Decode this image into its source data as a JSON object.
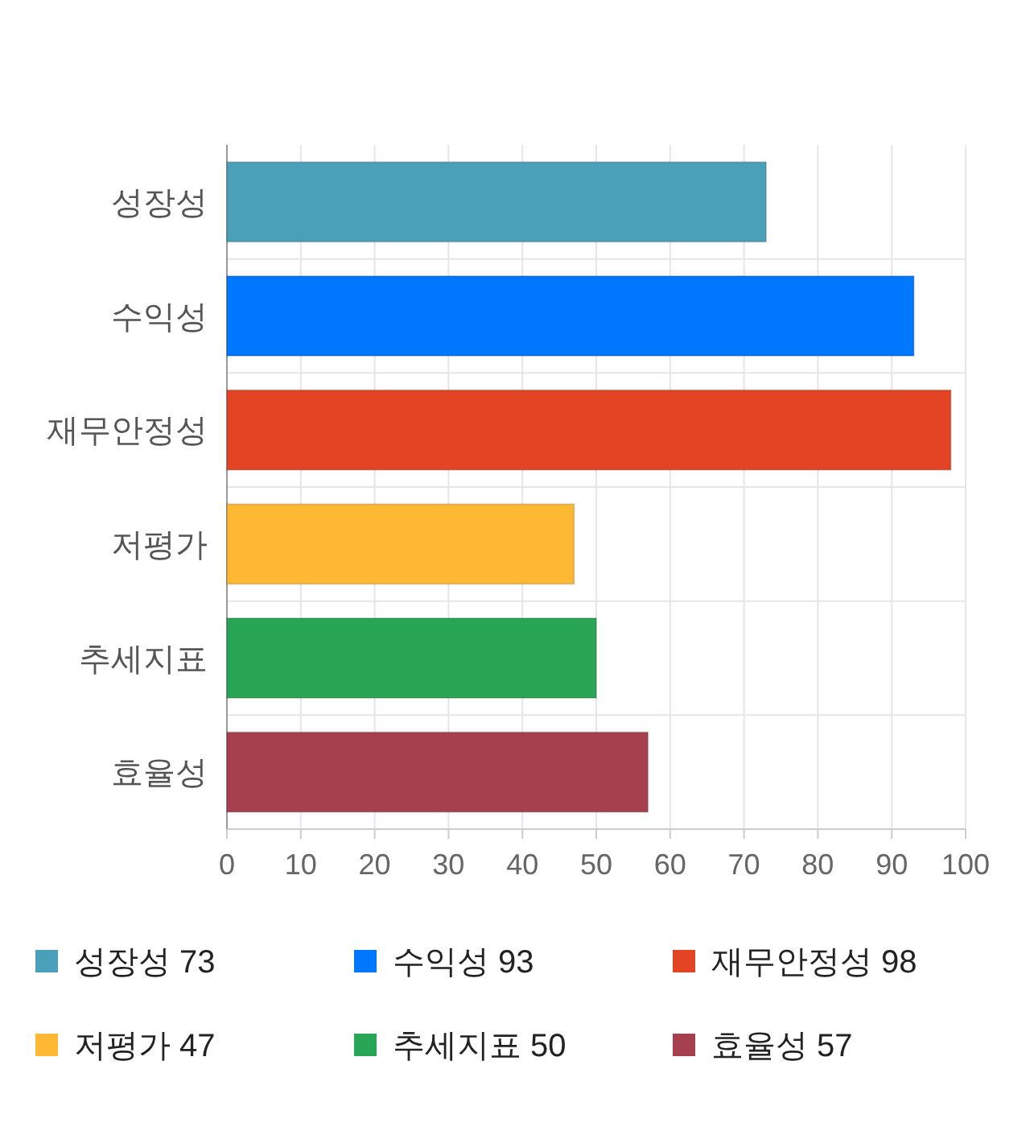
{
  "chart_data": {
    "type": "bar",
    "orientation": "horizontal",
    "categories": [
      "성장성",
      "수익성",
      "재무안정성",
      "저평가",
      "추세지표",
      "효율성"
    ],
    "series": [
      {
        "name": "성장성 73",
        "color": "#4aa0b8",
        "values": [
          73,
          null,
          null,
          null,
          null,
          null
        ]
      },
      {
        "name": "수익성 93",
        "color": "#0077ff",
        "values": [
          null,
          93,
          null,
          null,
          null,
          null
        ]
      },
      {
        "name": "재무안정성 98",
        "color": "#e24424",
        "values": [
          null,
          null,
          98,
          null,
          null,
          null
        ]
      },
      {
        "name": "저평가 47",
        "color": "#ffb833",
        "values": [
          null,
          null,
          null,
          47,
          null,
          null
        ]
      },
      {
        "name": "추세지표 50",
        "color": "#28a555",
        "values": [
          null,
          null,
          null,
          null,
          50,
          null
        ]
      },
      {
        "name": "효율성 57",
        "color": "#a6404f",
        "values": [
          null,
          null,
          null,
          null,
          null,
          57
        ]
      }
    ],
    "xlim": [
      0,
      100
    ],
    "xticks": [
      0,
      10,
      20,
      30,
      40,
      50,
      60,
      70,
      80,
      90,
      100
    ],
    "grid": true,
    "legend": "bottom"
  }
}
